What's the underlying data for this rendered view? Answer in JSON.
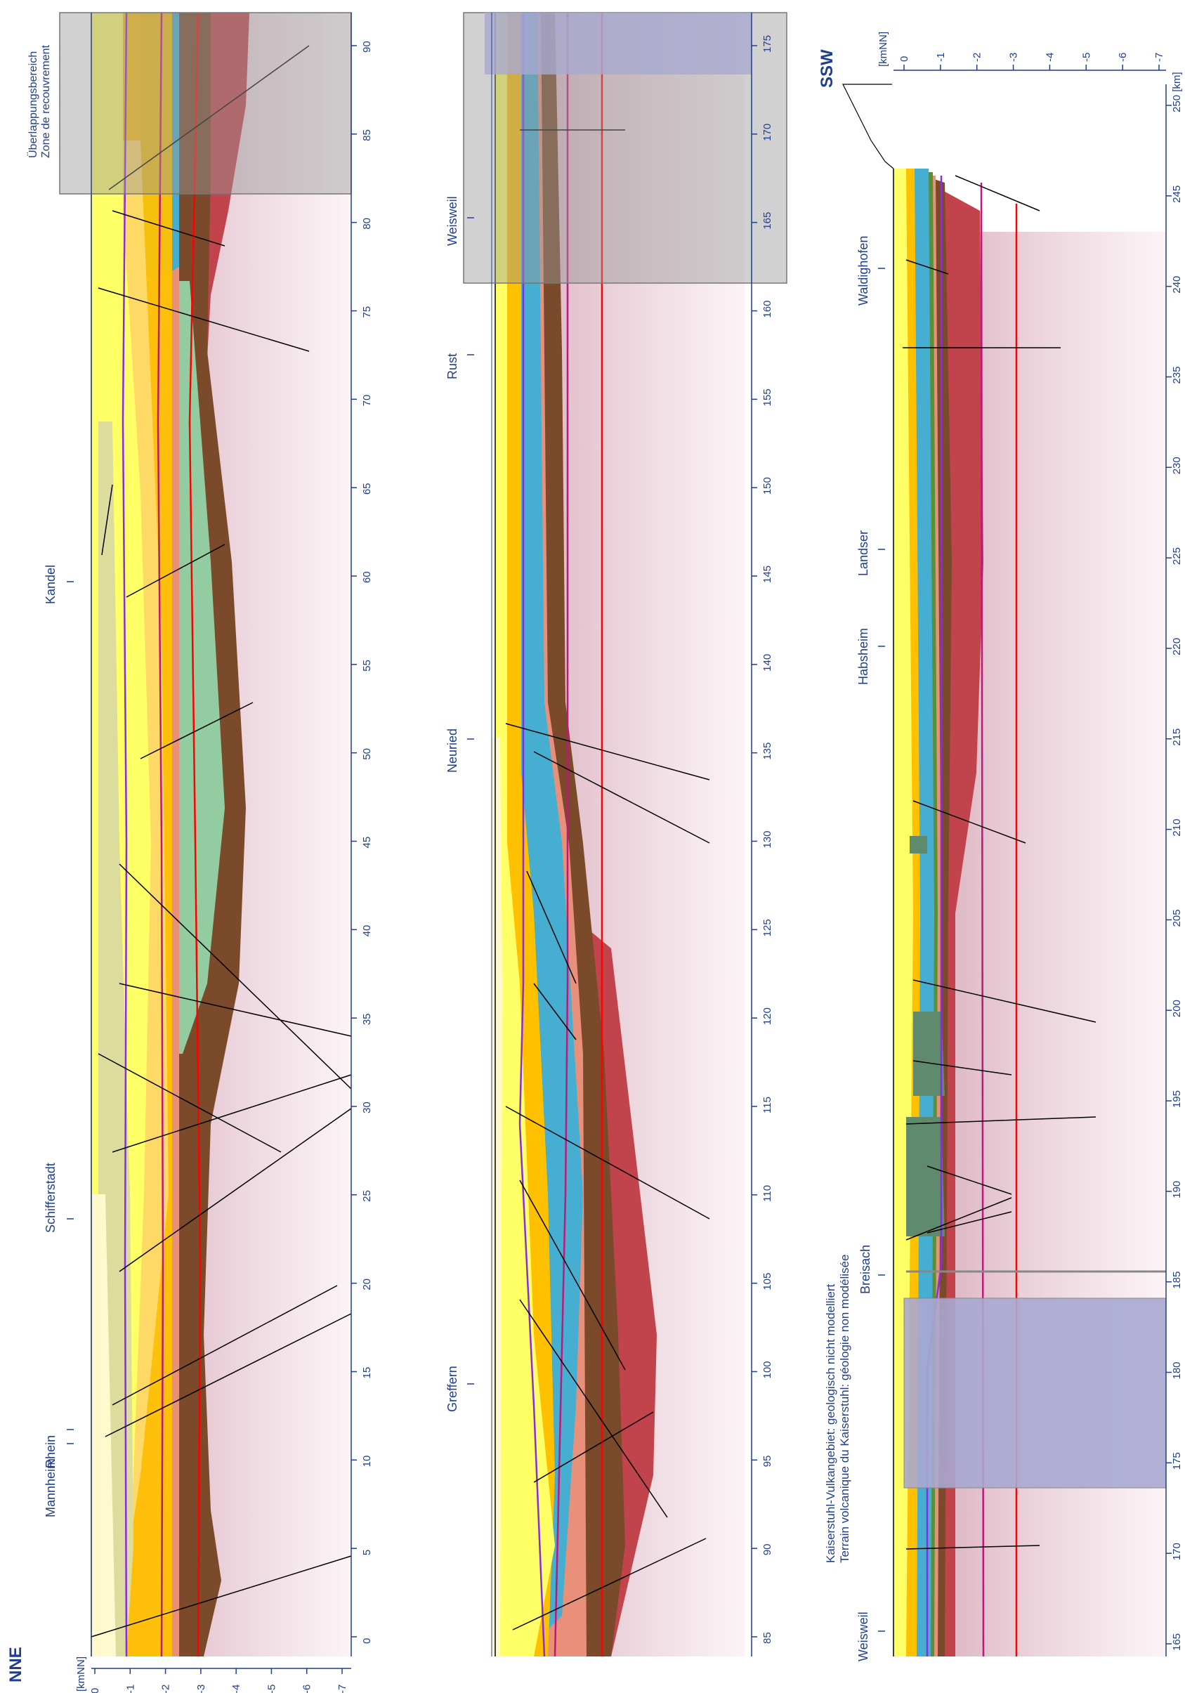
{
  "orientation": "rotated 90° counter-clockwise (page read from bottom-left)",
  "colors": {
    "axis": "#1f3f8c",
    "basement": "#e6c6d0",
    "tertiary_yellow": "#ffff66",
    "quaternary_pale": "#fffacd",
    "layer_orange": "#ffc000",
    "layer_light_orange": "#ffd966",
    "layer_teal": "#46aed0",
    "layer_green": "#5a8f3a",
    "layer_salmon": "#e8907a",
    "layer_brown": "#7b4a2a",
    "layer_red": "#c1444c",
    "layer_mint": "#93cca0",
    "layer_khaki": "#dcdc9c",
    "isoline_purple": "#8b2be2",
    "isoline_magenta": "#c0177a",
    "isoline_red": "#ff0000",
    "fault_black": "#000000",
    "volcanic": "#5f8a6e",
    "overlap_gray": "#9a9a9a",
    "not_modelled_blue": "#a9a9d0"
  },
  "direction_left": "NNE",
  "direction_right": "SSW",
  "depth_axis": {
    "unit": "[kmNN]",
    "ticks": [
      "0",
      "-1",
      "-2",
      "-3",
      "-4",
      "-5",
      "-6",
      "-7"
    ]
  },
  "overlap_note": {
    "line1": "Überlappungsbereich",
    "line2": "Zone de recouvrement"
  },
  "kaiserstuhl_note": {
    "line1": "Kaiserstuhl-Vulkangebiet: geologisch nicht modelliert",
    "line2": "Terrain volcanique du Kaiserstuhl: géologie non modélisée"
  },
  "panels": [
    {
      "name": "panel-1",
      "km_ticks": [
        "0",
        "5",
        "10",
        "15",
        "20",
        "25",
        "30",
        "35",
        "40",
        "45",
        "50",
        "55",
        "60",
        "65",
        "70",
        "75",
        "80",
        "85",
        "90"
      ],
      "places": [
        "Mannheim",
        "Rhein",
        "Schifferstadt",
        "Kandel"
      ]
    },
    {
      "name": "panel-2",
      "km_ticks": [
        "85",
        "90",
        "95",
        "100",
        "105",
        "110",
        "115",
        "120",
        "125",
        "130",
        "135",
        "140",
        "145",
        "150",
        "155",
        "160",
        "165",
        "170",
        "175"
      ],
      "places": [
        "Greffern",
        "Neuried",
        "Rust",
        "Weisweil"
      ]
    },
    {
      "name": "panel-3",
      "km_ticks": [
        "165",
        "170",
        "175",
        "180",
        "185",
        "190",
        "195",
        "200",
        "205",
        "210",
        "215",
        "220",
        "225",
        "230",
        "235",
        "240",
        "245",
        "250 [km]"
      ],
      "places": [
        "Weisweil",
        "Breisach",
        "Habsheim",
        "Landser",
        "Waldighofen"
      ]
    }
  ]
}
